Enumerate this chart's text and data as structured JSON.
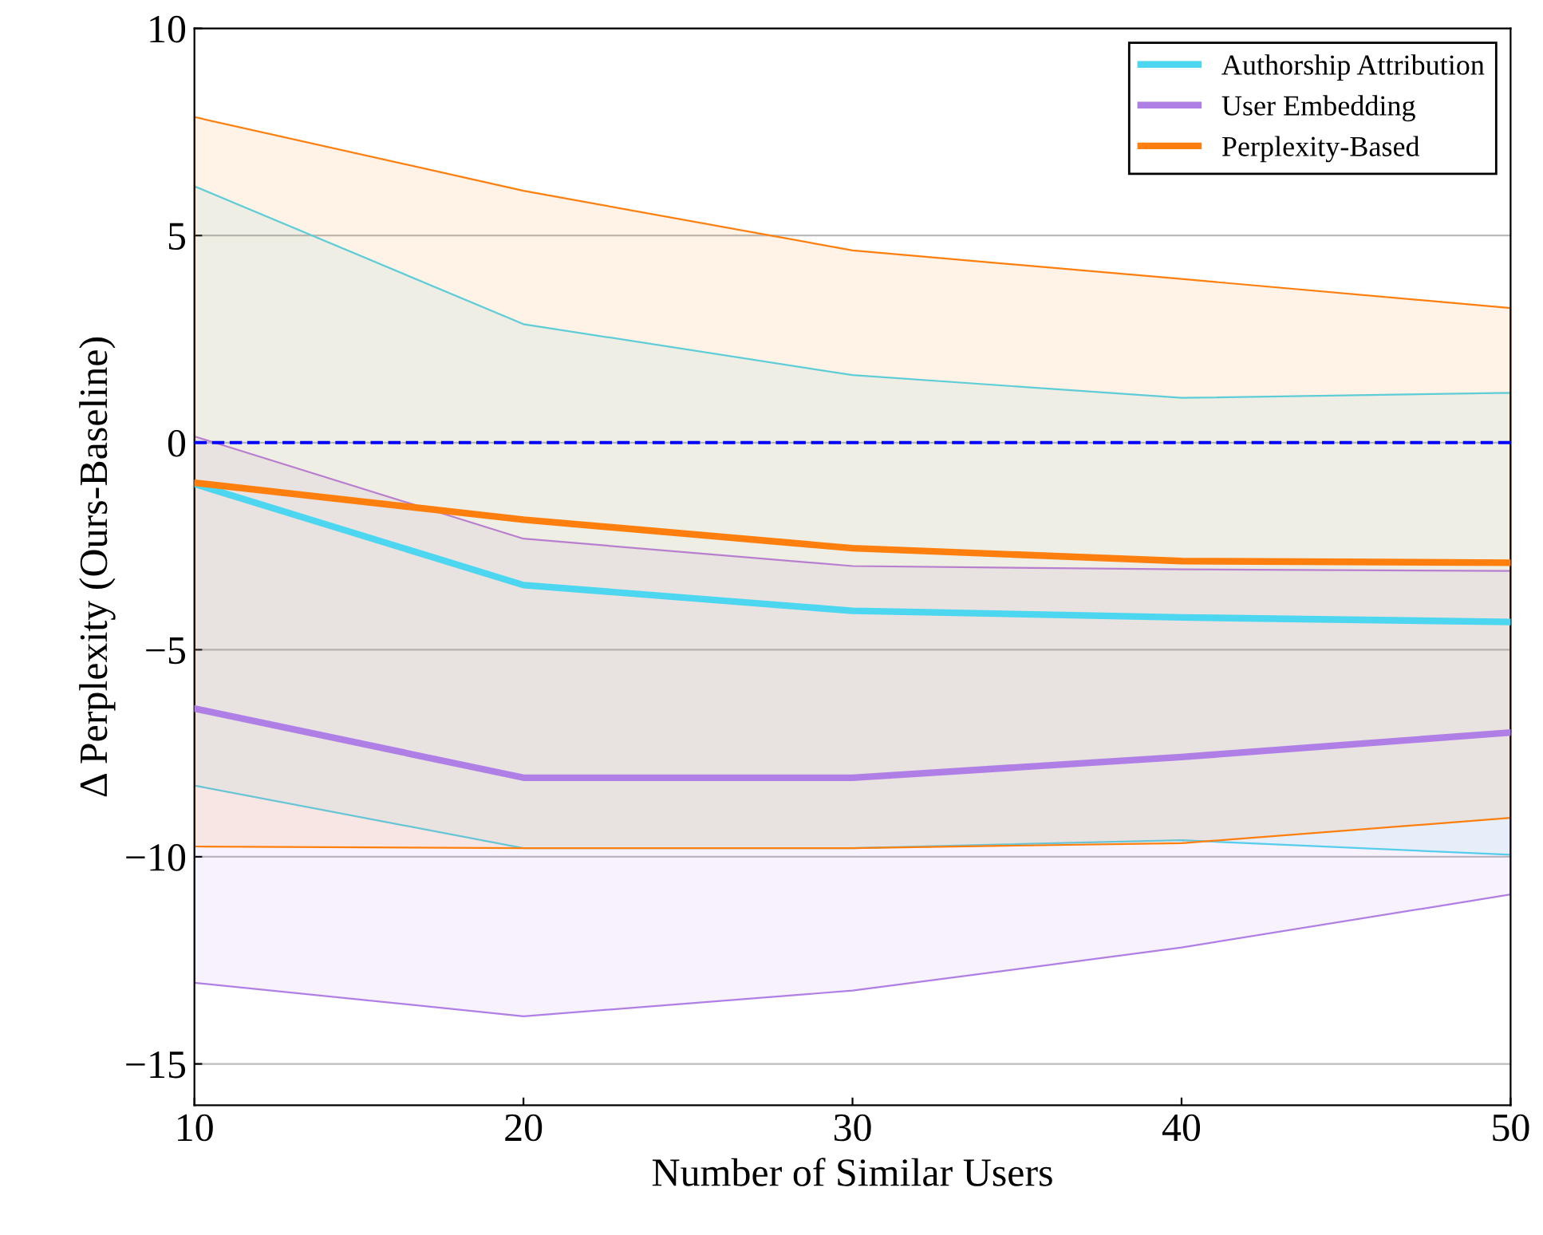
{
  "chart_data": {
    "type": "line",
    "xlabel": "Number of Similar Users",
    "ylabel": "Δ Perplexity (Ours-Baseline)",
    "x": [
      10,
      20,
      30,
      40,
      50
    ],
    "series": [
      {
        "name": "Authorship Attribution",
        "color": "#4dd6ef",
        "values": [
          -1.0,
          -3.44,
          -4.06,
          -4.22,
          -4.33
        ],
        "lower": [
          -8.28,
          -9.79,
          -9.79,
          -9.6,
          -9.95
        ],
        "upper": [
          6.19,
          2.86,
          1.63,
          1.08,
          1.2
        ]
      },
      {
        "name": "User Embedding",
        "color": "#b07fe6",
        "values": [
          -6.42,
          -8.09,
          -8.09,
          -7.59,
          -7.0
        ],
        "lower": [
          -13.04,
          -13.85,
          -13.23,
          -12.19,
          -10.91
        ],
        "upper": [
          0.15,
          -2.32,
          -2.98,
          -3.06,
          -3.1
        ]
      },
      {
        "name": "Perplexity-Based",
        "color": "#ff7f0e",
        "values": [
          -0.97,
          -1.86,
          -2.55,
          -2.86,
          -2.9
        ],
        "lower": [
          -9.75,
          -9.79,
          -9.79,
          -9.67,
          -9.06
        ],
        "upper": [
          7.86,
          6.08,
          4.64,
          3.95,
          3.25
        ]
      }
    ],
    "xlim": [
      10,
      50
    ],
    "xticks": [
      10,
      20,
      30,
      40,
      50
    ],
    "ylim": [
      -16,
      10
    ],
    "yticks": [
      {
        "value": -15,
        "label": "−15"
      },
      {
        "value": -10,
        "label": "−10"
      },
      {
        "value": -5,
        "label": "−5"
      },
      0,
      5,
      10
    ],
    "ref_lines": [
      {
        "axis": "y",
        "value": 0,
        "color": "#0000ff",
        "line_style": "dashed"
      }
    ],
    "grid": "y",
    "legend": "top right",
    "marker": "none",
    "line_style": "solid"
  }
}
